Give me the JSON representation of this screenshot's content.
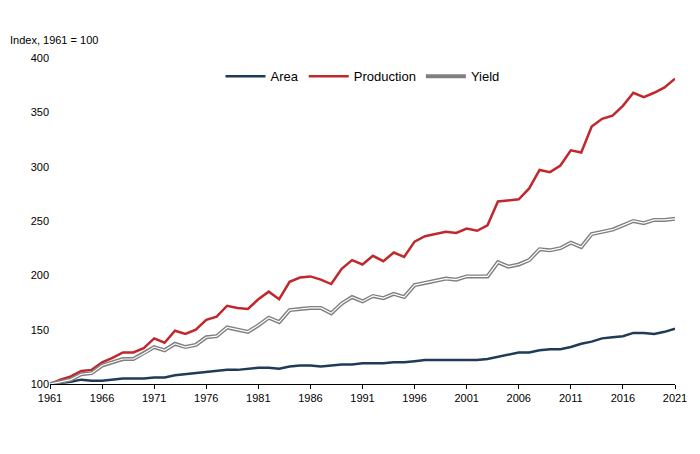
{
  "chart_data": {
    "type": "line",
    "y_label": "Index, 1961 = 100",
    "x": [
      1961,
      1962,
      1963,
      1964,
      1965,
      1966,
      1967,
      1968,
      1969,
      1970,
      1971,
      1972,
      1973,
      1974,
      1975,
      1976,
      1977,
      1978,
      1979,
      1980,
      1981,
      1982,
      1983,
      1984,
      1985,
      1986,
      1987,
      1988,
      1989,
      1990,
      1991,
      1992,
      1993,
      1994,
      1995,
      1996,
      1997,
      1998,
      1999,
      2000,
      2001,
      2002,
      2003,
      2004,
      2005,
      2006,
      2007,
      2008,
      2009,
      2010,
      2011,
      2012,
      2013,
      2014,
      2015,
      2016,
      2017,
      2018,
      2019,
      2020,
      2021
    ],
    "series": [
      {
        "name": "Area",
        "color": "#1f3b57",
        "line_style": "solid",
        "values": [
          100,
          101,
          102,
          104,
          103,
          103,
          104,
          105,
          105,
          105,
          106,
          106,
          108,
          109,
          110,
          111,
          112,
          113,
          113,
          114,
          115,
          115,
          114,
          116,
          117,
          117,
          116,
          117,
          118,
          118,
          119,
          119,
          119,
          120,
          120,
          121,
          122,
          122,
          122,
          122,
          122,
          122,
          123,
          125,
          127,
          129,
          129,
          131,
          132,
          132,
          134,
          137,
          139,
          142,
          143,
          144,
          147,
          147,
          146,
          148,
          151
        ]
      },
      {
        "name": "Production",
        "color": "#c0282d",
        "line_style": "solid",
        "values": [
          100,
          104,
          107,
          112,
          113,
          120,
          124,
          129,
          129,
          133,
          142,
          138,
          149,
          146,
          150,
          159,
          162,
          172,
          170,
          169,
          178,
          185,
          178,
          194,
          198,
          199,
          196,
          192,
          206,
          214,
          210,
          218,
          213,
          221,
          217,
          231,
          236,
          238,
          240,
          239,
          243,
          241,
          246,
          268,
          269,
          270,
          280,
          297,
          295,
          301,
          315,
          313,
          337,
          344,
          347,
          356,
          368,
          364,
          368,
          373,
          381
        ]
      },
      {
        "name": "Yield",
        "color": "#7f7f7f",
        "line_style": "double",
        "values": [
          100,
          102,
          104,
          109,
          110,
          117,
          120,
          123,
          123,
          128,
          134,
          131,
          137,
          134,
          136,
          143,
          144,
          152,
          150,
          148,
          154,
          161,
          157,
          168,
          169,
          170,
          170,
          165,
          174,
          180,
          176,
          181,
          179,
          183,
          180,
          191,
          193,
          195,
          197,
          196,
          199,
          199,
          199,
          212,
          208,
          210,
          214,
          224,
          223,
          225,
          230,
          226,
          238,
          240,
          242,
          246,
          250,
          248,
          251,
          251,
          252
        ]
      }
    ],
    "xlim": [
      1961,
      2021
    ],
    "xticks": [
      1961,
      1966,
      1971,
      1976,
      1981,
      1986,
      1991,
      1996,
      2001,
      2006,
      2011,
      2016,
      2021
    ],
    "ylim": [
      100,
      400
    ],
    "yticks": [
      100,
      150,
      200,
      250,
      300,
      350,
      400
    ],
    "grid": false,
    "legend": "top"
  }
}
